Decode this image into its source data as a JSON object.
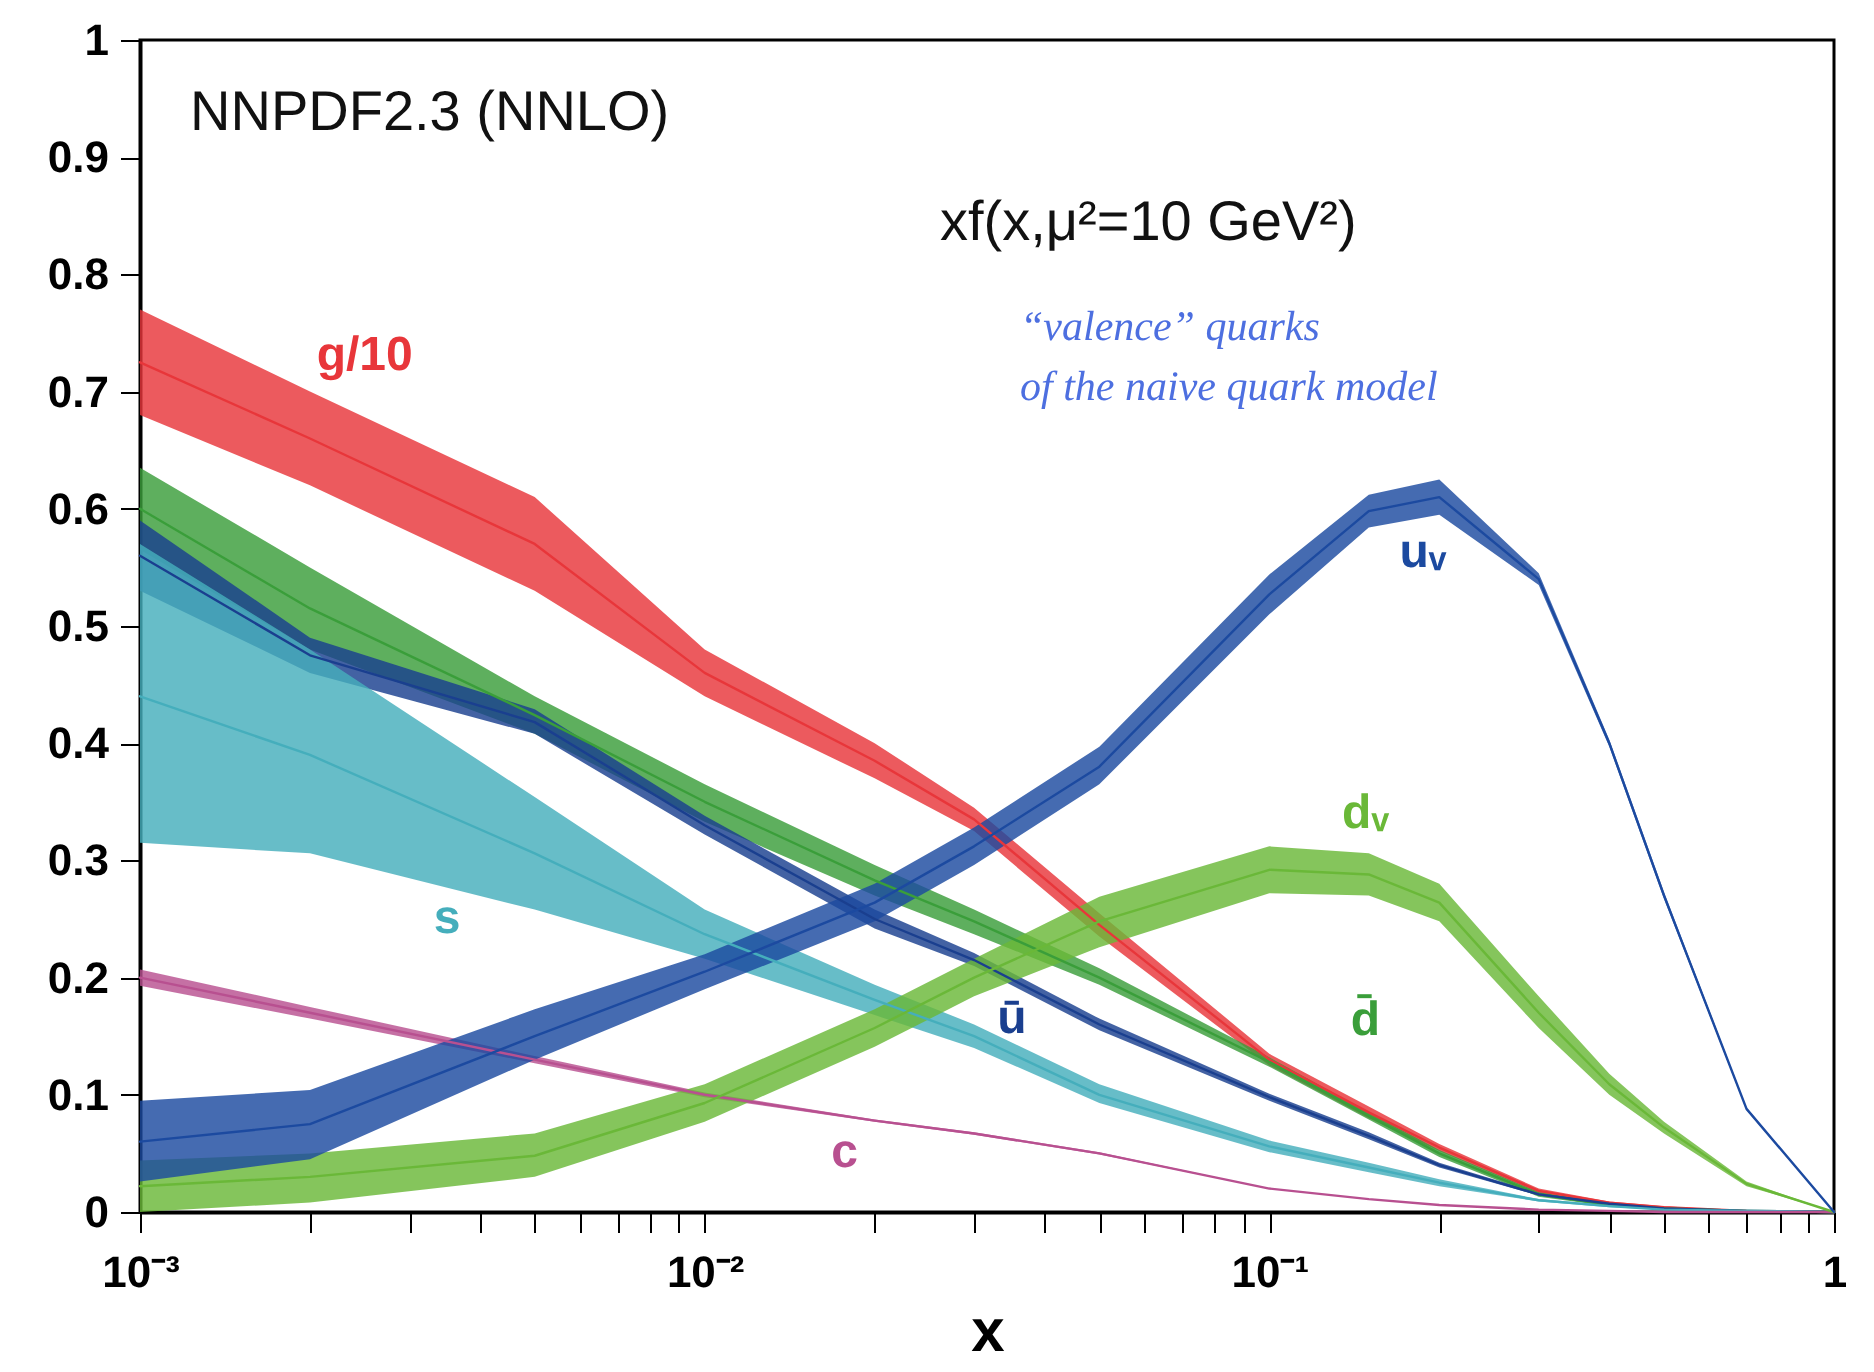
{
  "chart_data": {
    "type": "line",
    "title": "NNPDF2.3 (NNLO)",
    "subtitle": "xf(x,μ²=10 GeV²)",
    "xlabel": "x",
    "annotations": [
      "“valence” quarks",
      "of the naive quark model"
    ],
    "log": "x",
    "grid": false,
    "line_style": "solid",
    "xlim": [
      0.001,
      1
    ],
    "xticks": [
      {
        "value": 0.001,
        "label": "10⁻³"
      },
      {
        "value": 0.002,
        "label": null
      },
      {
        "value": 0.003,
        "label": null
      },
      {
        "value": 0.004,
        "label": null
      },
      {
        "value": 0.005,
        "label": null
      },
      {
        "value": 0.006,
        "label": null
      },
      {
        "value": 0.007,
        "label": null
      },
      {
        "value": 0.008,
        "label": null
      },
      {
        "value": 0.009,
        "label": null
      },
      {
        "value": 0.01,
        "label": "10⁻²"
      },
      {
        "value": 0.02,
        "label": null
      },
      {
        "value": 0.03,
        "label": null
      },
      {
        "value": 0.04,
        "label": null
      },
      {
        "value": 0.05,
        "label": null
      },
      {
        "value": 0.06,
        "label": null
      },
      {
        "value": 0.07,
        "label": null
      },
      {
        "value": 0.08,
        "label": null
      },
      {
        "value": 0.09,
        "label": null
      },
      {
        "value": 0.1,
        "label": "10⁻¹"
      },
      {
        "value": 0.2,
        "label": null
      },
      {
        "value": 0.3,
        "label": null
      },
      {
        "value": 0.4,
        "label": null
      },
      {
        "value": 0.5,
        "label": null
      },
      {
        "value": 0.6,
        "label": null
      },
      {
        "value": 0.7,
        "label": null
      },
      {
        "value": 0.8,
        "label": null
      },
      {
        "value": 0.9,
        "label": null
      },
      1
    ],
    "ylim": [
      0,
      1
    ],
    "yticks": [
      0,
      0.1,
      0.2,
      0.3,
      0.4,
      0.5,
      0.6,
      0.7,
      0.8,
      0.9,
      1
    ],
    "x": [
      0.001,
      0.002,
      0.005,
      0.01,
      0.02,
      0.03,
      0.05,
      0.1,
      0.15,
      0.2,
      0.3,
      0.4,
      0.5,
      0.7,
      1
    ],
    "series": [
      {
        "name": "g/10",
        "color": "#e8363a",
        "values": [
          0.725,
          0.66,
          0.57,
          0.46,
          0.385,
          0.335,
          0.245,
          0.13,
          0.085,
          0.055,
          0.018,
          0.008,
          0.004,
          0.001,
          0
        ],
        "lower": [
          0.68,
          0.62,
          0.53,
          0.44,
          0.37,
          0.325,
          0.235,
          0.125,
          0.08,
          0.052,
          0.016,
          0.007,
          0.003,
          0.001,
          0
        ],
        "upper": [
          0.77,
          0.7,
          0.61,
          0.48,
          0.4,
          0.345,
          0.255,
          0.135,
          0.09,
          0.058,
          0.02,
          0.009,
          0.005,
          0.001,
          0
        ]
      },
      {
        "name": "d̄",
        "color": "#3a9e3a",
        "values": [
          0.6,
          0.515,
          0.424,
          0.35,
          0.283,
          0.248,
          0.2,
          0.128,
          0.082,
          0.05,
          0.015,
          0.006,
          0.003,
          0.001,
          0
        ],
        "lower": [
          0.565,
          0.48,
          0.408,
          0.333,
          0.27,
          0.237,
          0.194,
          0.124,
          0.079,
          0.047,
          0.013,
          0.005,
          0.002,
          0.001,
          0
        ],
        "upper": [
          0.635,
          0.55,
          0.44,
          0.365,
          0.296,
          0.258,
          0.208,
          0.132,
          0.085,
          0.053,
          0.017,
          0.007,
          0.004,
          0.001,
          0
        ]
      },
      {
        "name": "ū",
        "color": "#1a3f8f",
        "values": [
          0.56,
          0.475,
          0.418,
          0.33,
          0.25,
          0.215,
          0.16,
          0.098,
          0.065,
          0.04,
          0.015,
          0.007,
          0.003,
          0.001,
          0
        ],
        "lower": [
          0.53,
          0.46,
          0.408,
          0.322,
          0.242,
          0.21,
          0.155,
          0.095,
          0.062,
          0.038,
          0.014,
          0.006,
          0.003,
          0.001,
          0
        ],
        "upper": [
          0.59,
          0.49,
          0.429,
          0.338,
          0.258,
          0.221,
          0.165,
          0.101,
          0.068,
          0.042,
          0.016,
          0.008,
          0.003,
          0.001,
          0
        ]
      },
      {
        "name": "s",
        "color": "#45aebc",
        "values": [
          0.44,
          0.39,
          0.306,
          0.237,
          0.181,
          0.15,
          0.1,
          0.056,
          0.038,
          0.025,
          0.01,
          0.005,
          0.002,
          0.001,
          0
        ],
        "lower": [
          0.315,
          0.306,
          0.258,
          0.216,
          0.168,
          0.14,
          0.093,
          0.051,
          0.034,
          0.022,
          0.009,
          0.004,
          0.002,
          0.001,
          0
        ],
        "upper": [
          0.57,
          0.48,
          0.354,
          0.258,
          0.194,
          0.16,
          0.109,
          0.061,
          0.042,
          0.028,
          0.011,
          0.006,
          0.002,
          0.001,
          0
        ]
      },
      {
        "name": "c",
        "color": "#b85090",
        "values": [
          0.2,
          0.17,
          0.13,
          0.1,
          0.078,
          0.067,
          0.05,
          0.02,
          0.011,
          0.006,
          0.002,
          0.001,
          0,
          0,
          0
        ],
        "lower": [
          0.193,
          0.165,
          0.127,
          0.098,
          0.077,
          0.066,
          0.049,
          0.02,
          0.011,
          0.006,
          0.002,
          0.001,
          0,
          0,
          0
        ],
        "upper": [
          0.207,
          0.175,
          0.133,
          0.102,
          0.079,
          0.068,
          0.051,
          0.02,
          0.011,
          0.006,
          0.002,
          0.001,
          0,
          0,
          0
        ]
      },
      {
        "name": "dᵥ",
        "color": "#6ab838",
        "values": [
          0.022,
          0.03,
          0.048,
          0.093,
          0.157,
          0.2,
          0.248,
          0.292,
          0.288,
          0.264,
          0.17,
          0.109,
          0.072,
          0.024,
          0
        ],
        "lower": [
          0,
          0.008,
          0.03,
          0.077,
          0.141,
          0.184,
          0.226,
          0.272,
          0.27,
          0.248,
          0.157,
          0.1,
          0.067,
          0.022,
          0
        ],
        "upper": [
          0.044,
          0.05,
          0.067,
          0.109,
          0.173,
          0.216,
          0.269,
          0.312,
          0.306,
          0.28,
          0.184,
          0.118,
          0.077,
          0.026,
          0
        ]
      },
      {
        "name": "uᵥ",
        "color": "#1c4aa0",
        "values": [
          0.06,
          0.075,
          0.15,
          0.205,
          0.264,
          0.312,
          0.38,
          0.527,
          0.598,
          0.61,
          0.54,
          0.4,
          0.27,
          0.088,
          0
        ],
        "lower": [
          0.026,
          0.045,
          0.13,
          0.19,
          0.248,
          0.296,
          0.365,
          0.51,
          0.584,
          0.595,
          0.535,
          0.397,
          0.267,
          0.087,
          0
        ],
        "upper": [
          0.095,
          0.104,
          0.173,
          0.22,
          0.28,
          0.328,
          0.397,
          0.544,
          0.612,
          0.625,
          0.545,
          0.403,
          0.273,
          0.089,
          0
        ]
      }
    ]
  }
}
